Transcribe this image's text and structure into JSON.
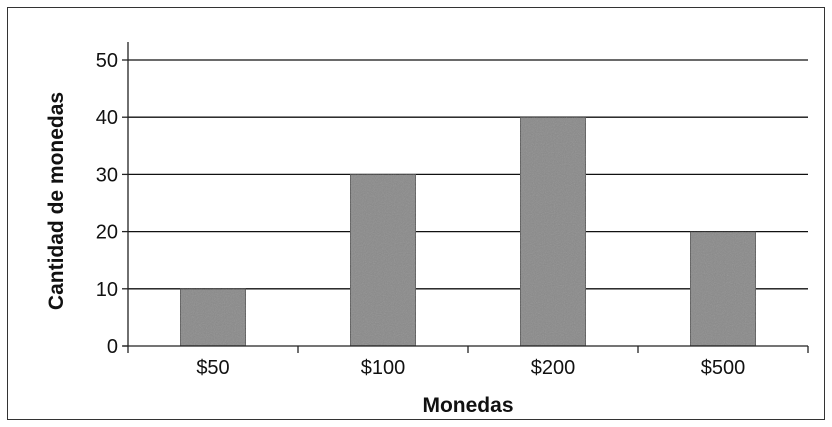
{
  "chart_data": {
    "type": "bar",
    "categories": [
      "$50",
      "$100",
      "$200",
      "$500"
    ],
    "values": [
      10,
      30,
      40,
      20
    ],
    "title": "",
    "xlabel": "Monedas",
    "ylabel": "Cantidad de monedas",
    "ylim": [
      0,
      50
    ],
    "yticks": [
      0,
      10,
      20,
      30,
      40,
      50
    ],
    "grid": true,
    "legend": "none",
    "colors": {
      "bar": "#8a8a8a",
      "bar_edge": "#3a3a3a",
      "grid": "#111111",
      "axis": "#222222"
    }
  }
}
